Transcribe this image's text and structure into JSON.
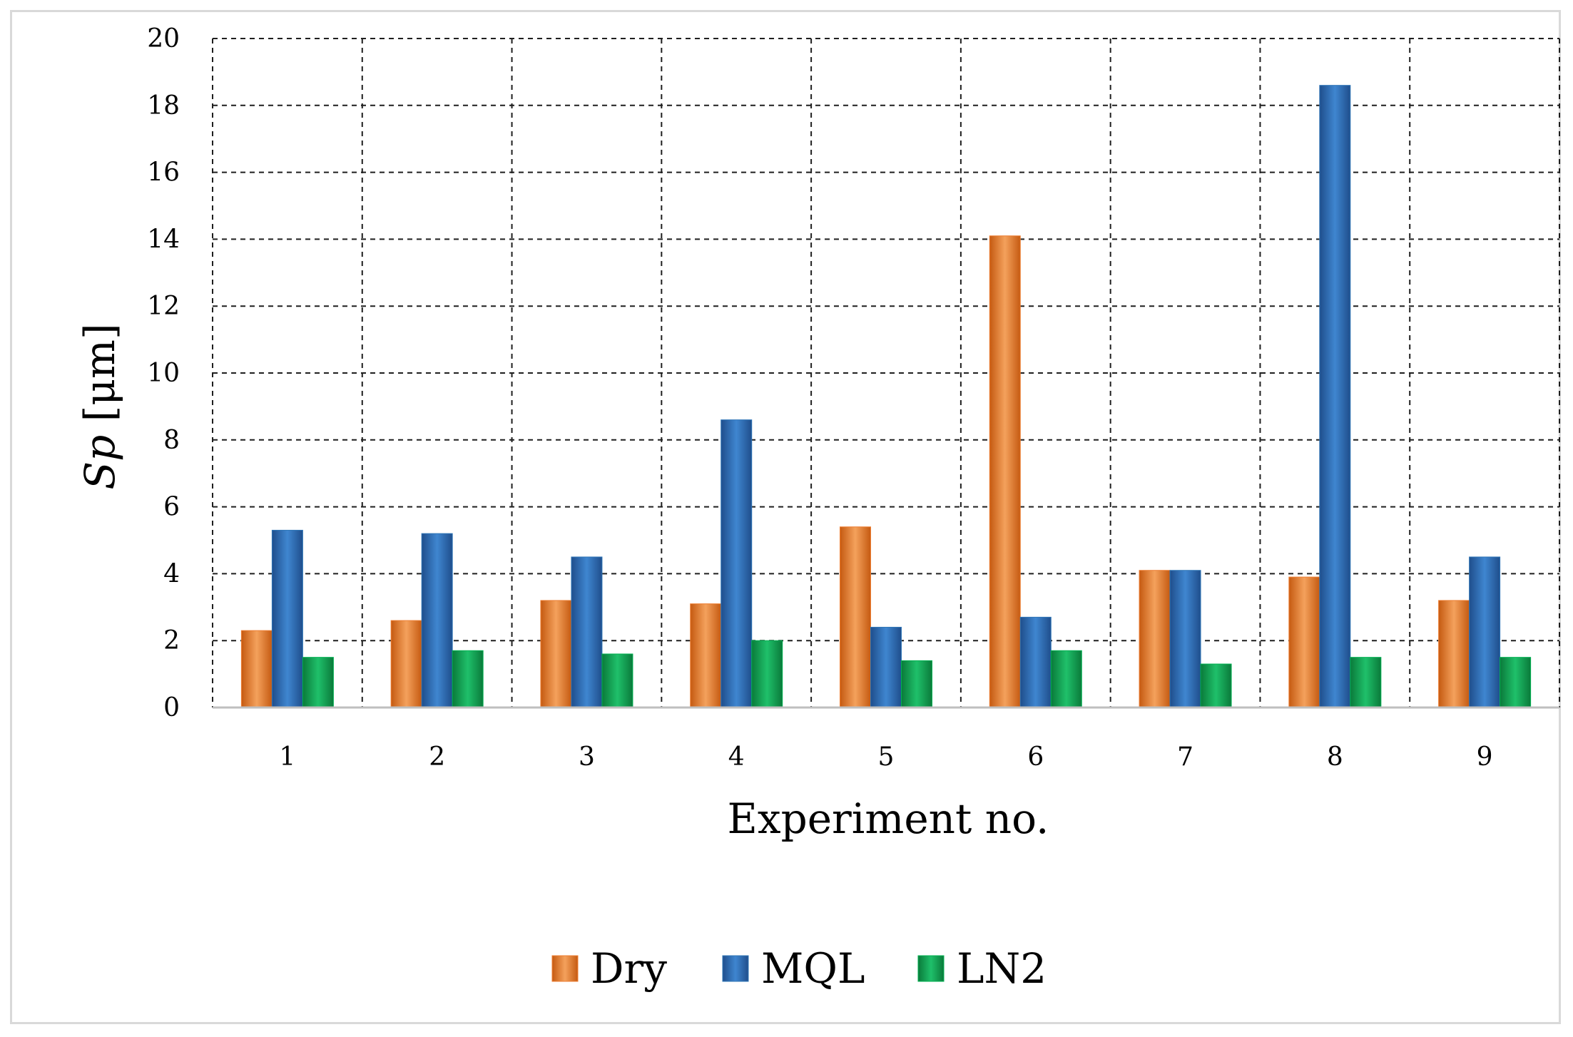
{
  "chart_data": {
    "type": "bar",
    "title": "",
    "xlabel": "Experiment no.",
    "ylabel_italic": "Sp",
    "ylabel_unit": " [μm]",
    "ylim": [
      0,
      20
    ],
    "ytick_step": 2,
    "yticks": [
      "0",
      "2",
      "4",
      "6",
      "8",
      "10",
      "12",
      "14",
      "16",
      "18",
      "20"
    ],
    "categories": [
      "1",
      "2",
      "3",
      "4",
      "5",
      "6",
      "7",
      "8",
      "9"
    ],
    "grid": true,
    "legend_position": "bottom-center",
    "series": [
      {
        "name": "Dry",
        "color": "#ed7d31",
        "values": [
          2.3,
          2.6,
          3.2,
          3.1,
          5.4,
          14.1,
          4.1,
          3.9,
          3.2
        ]
      },
      {
        "name": "MQL",
        "color": "#2e75b6",
        "values": [
          5.3,
          5.2,
          4.5,
          8.6,
          2.4,
          2.7,
          4.1,
          18.6,
          4.5
        ]
      },
      {
        "name": "LN2",
        "color": "#00b050",
        "values": [
          1.5,
          1.7,
          1.6,
          2.0,
          1.4,
          1.7,
          1.3,
          1.5,
          1.5
        ]
      }
    ]
  }
}
